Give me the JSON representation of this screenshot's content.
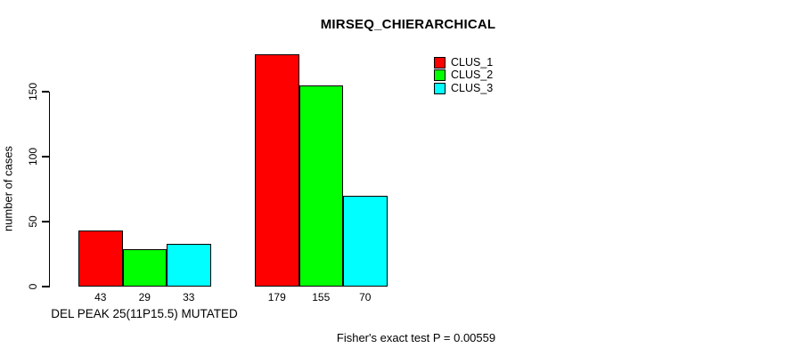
{
  "title": "MIRSEQ_CHIERARCHICAL",
  "chart_data": {
    "type": "bar",
    "title": "MIRSEQ_CHIERARCHICAL",
    "categories": [
      "DEL PEAK 25(11P15.5) MUTATED",
      ""
    ],
    "series": [
      {
        "name": "CLUS_1",
        "color": "#ff0000",
        "values": [
          43,
          179
        ]
      },
      {
        "name": "CLUS_2",
        "color": "#00ff00",
        "values": [
          29,
          155
        ]
      },
      {
        "name": "CLUS_3",
        "color": "#00ffff",
        "values": [
          33,
          70
        ]
      }
    ],
    "xlabel": "",
    "ylabel": "number of cases",
    "yticks": [
      0,
      50,
      100,
      150
    ],
    "ylim": [
      0,
      185
    ],
    "grid": false,
    "legend_position": "top-right",
    "bar_value_labels": [
      [
        43,
        29,
        33
      ],
      [
        179,
        155,
        70
      ]
    ],
    "annotation": "Fisher's exact test P = 0.00559",
    "bar_border_color": "#000000",
    "axis_color": "#000000"
  }
}
